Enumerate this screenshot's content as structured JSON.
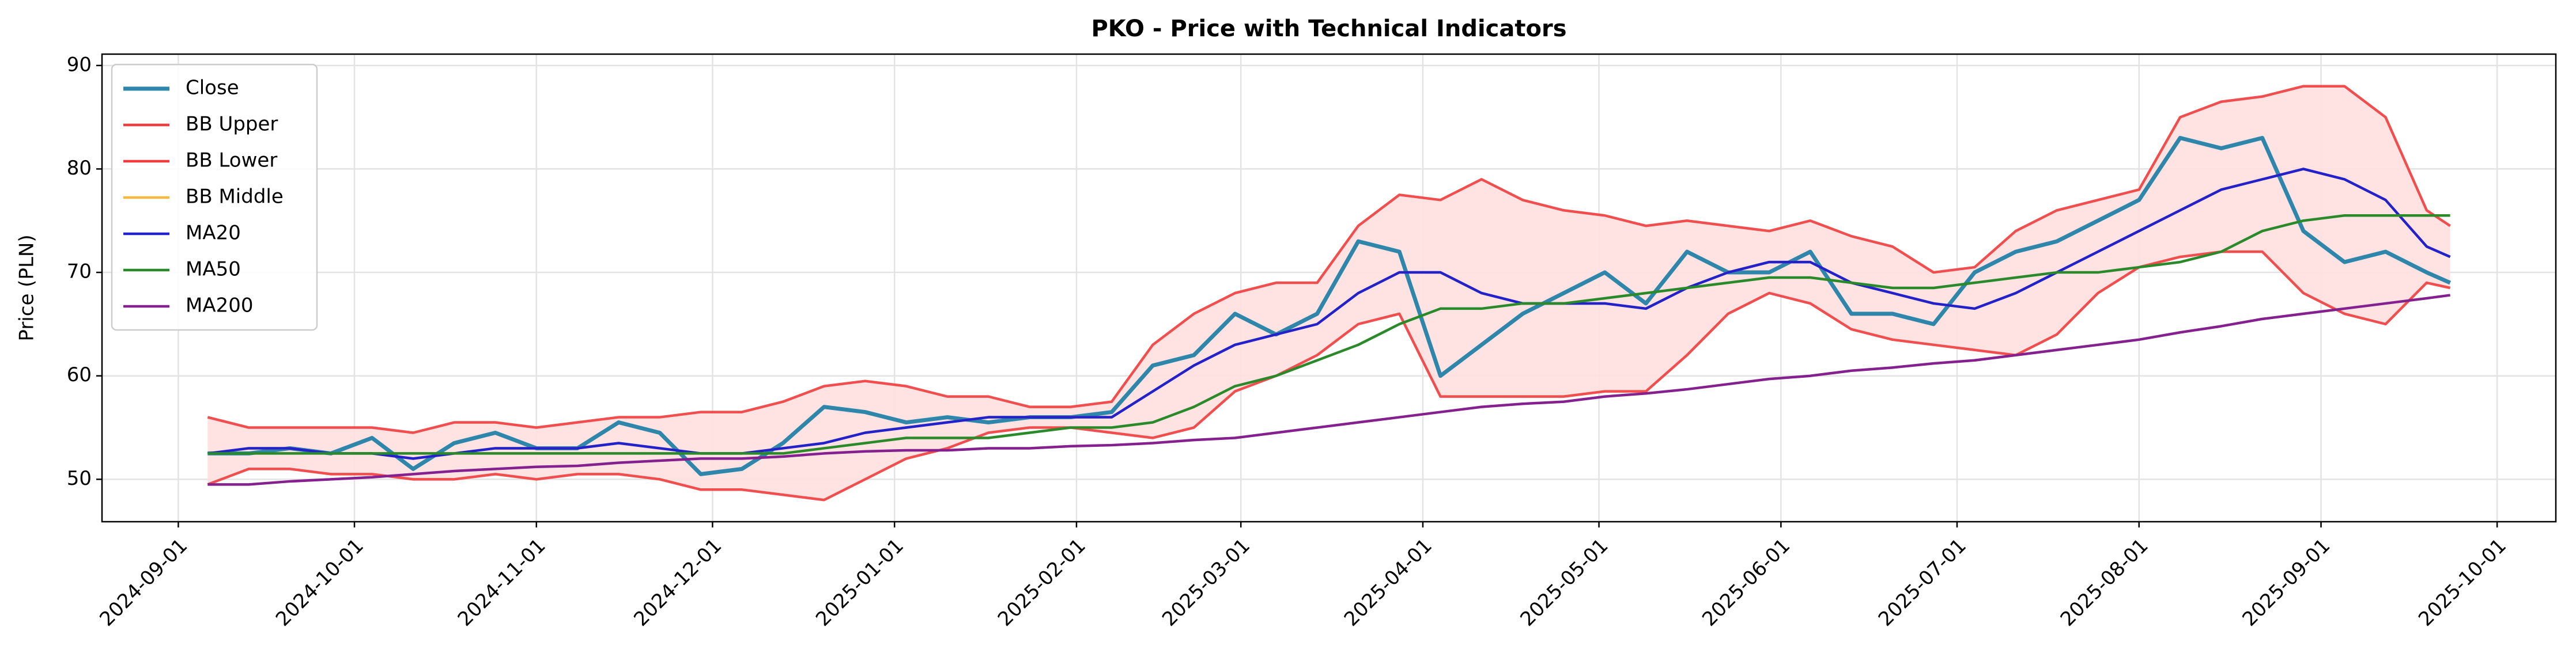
{
  "chart_data": {
    "type": "line",
    "title": "PKO - Price with Technical Indicators",
    "ylabel": "Price (PLN)",
    "x": [
      "2024-09-06",
      "2024-09-13",
      "2024-09-20",
      "2024-09-27",
      "2024-10-04",
      "2024-10-11",
      "2024-10-18",
      "2024-10-25",
      "2024-11-01",
      "2024-11-08",
      "2024-11-15",
      "2024-11-22",
      "2024-11-29",
      "2024-12-06",
      "2024-12-13",
      "2024-12-20",
      "2024-12-27",
      "2025-01-03",
      "2025-01-10",
      "2025-01-17",
      "2025-01-24",
      "2025-01-31",
      "2025-02-07",
      "2025-02-14",
      "2025-02-21",
      "2025-02-28",
      "2025-03-07",
      "2025-03-14",
      "2025-03-21",
      "2025-03-28",
      "2025-04-04",
      "2025-04-11",
      "2025-04-18",
      "2025-04-25",
      "2025-05-02",
      "2025-05-09",
      "2025-05-16",
      "2025-05-23",
      "2025-05-30",
      "2025-06-06",
      "2025-06-13",
      "2025-06-20",
      "2025-06-27",
      "2025-07-04",
      "2025-07-11",
      "2025-07-18",
      "2025-07-25",
      "2025-08-01",
      "2025-08-08",
      "2025-08-15",
      "2025-08-22",
      "2025-08-29",
      "2025-09-05",
      "2025-09-12",
      "2025-09-19",
      "2025-09-23"
    ],
    "series": [
      {
        "name": "Close",
        "color": "#2e86ab",
        "values": [
          52.5,
          52.5,
          53,
          52.5,
          54,
          51,
          53.5,
          54.5,
          53,
          53,
          55.5,
          54.5,
          50.5,
          51,
          53.5,
          57,
          56.5,
          55.5,
          56,
          55.5,
          56,
          56,
          56.5,
          61,
          62,
          66,
          64,
          66,
          73,
          72,
          60,
          63,
          66,
          68,
          70,
          67,
          72,
          70,
          70,
          72,
          66,
          66,
          65,
          70,
          72,
          73,
          75,
          77,
          83,
          82,
          83,
          74,
          71,
          72,
          70,
          69
        ]
      },
      {
        "name": "BB Upper",
        "color": "#f03c3c",
        "values": [
          56,
          55,
          55,
          55,
          55,
          54.5,
          55.5,
          55.5,
          55,
          55.5,
          56,
          56,
          56.5,
          56.5,
          57.5,
          59,
          59.5,
          59,
          58,
          58,
          57,
          57,
          57.5,
          63,
          66,
          68,
          69,
          69,
          74.5,
          77.5,
          77,
          79,
          77,
          76,
          75.5,
          74.5,
          75,
          74.5,
          74,
          75,
          73.5,
          72.5,
          70,
          70.5,
          74,
          76,
          77,
          78,
          85,
          86.5,
          87,
          88,
          88,
          85,
          76,
          74.5
        ]
      },
      {
        "name": "BB Lower",
        "color": "#f03c3c",
        "values": [
          49.5,
          51,
          51,
          50.5,
          50.5,
          50,
          50,
          50.5,
          50,
          50.5,
          50.5,
          50,
          49,
          49,
          48.5,
          48,
          50,
          52,
          53,
          54.5,
          55,
          55,
          54.5,
          54,
          55,
          58.5,
          60,
          62,
          65,
          66,
          58,
          58,
          58,
          58,
          58.5,
          58.5,
          62,
          66,
          68,
          67,
          64.5,
          63.5,
          63,
          62.5,
          62,
          64,
          68,
          70.5,
          71.5,
          72,
          72,
          68,
          66,
          65,
          69,
          68.5
        ]
      },
      {
        "name": "BB Middle",
        "color": "#f5b942",
        "values": [
          52.5,
          53,
          53,
          52.5,
          52.5,
          52,
          52.5,
          53,
          53,
          53,
          53.5,
          53,
          52.5,
          52.5,
          53,
          53.5,
          54.5,
          55,
          55.5,
          56,
          56,
          56,
          56,
          58.5,
          61,
          63,
          64,
          65,
          68,
          70,
          70,
          68,
          67,
          67,
          67,
          66.5,
          68.5,
          70,
          71,
          71,
          69,
          68,
          67,
          66.5,
          68,
          70,
          72,
          74,
          76,
          78,
          79,
          80,
          79,
          77,
          72.5,
          71.5
        ]
      },
      {
        "name": "MA20",
        "color": "#2222cc",
        "values": [
          52.5,
          53,
          53,
          52.5,
          52.5,
          52,
          52.5,
          53,
          53,
          53,
          53.5,
          53,
          52.5,
          52.5,
          53,
          53.5,
          54.5,
          55,
          55.5,
          56,
          56,
          56,
          56,
          58.5,
          61,
          63,
          64,
          65,
          68,
          70,
          70,
          68,
          67,
          67,
          67,
          66.5,
          68.5,
          70,
          71,
          71,
          69,
          68,
          67,
          66.5,
          68,
          70,
          72,
          74,
          76,
          78,
          79,
          80,
          79,
          77,
          72.5,
          71.5
        ]
      },
      {
        "name": "MA50",
        "color": "#2a8a2a",
        "values": [
          52.5,
          52.5,
          52.5,
          52.5,
          52.5,
          52.5,
          52.5,
          52.5,
          52.5,
          52.5,
          52.5,
          52.5,
          52.5,
          52.5,
          52.5,
          53,
          53.5,
          54,
          54,
          54,
          54.5,
          55,
          55,
          55.5,
          57,
          59,
          60,
          61.5,
          63,
          65,
          66.5,
          66.5,
          67,
          67,
          67.5,
          68,
          68.5,
          69,
          69.5,
          69.5,
          69,
          68.5,
          68.5,
          69,
          69.5,
          70,
          70,
          70.5,
          71,
          72,
          74,
          75,
          75.5,
          75.5,
          75.5,
          75.5
        ]
      },
      {
        "name": "MA200",
        "color": "#85208f",
        "values": [
          49.5,
          49.5,
          49.8,
          50,
          50.2,
          50.5,
          50.8,
          51,
          51.2,
          51.3,
          51.6,
          51.8,
          52,
          52,
          52.2,
          52.5,
          52.7,
          52.8,
          52.8,
          53,
          53,
          53.2,
          53.3,
          53.5,
          53.8,
          54,
          54.5,
          55,
          55.5,
          56,
          56.5,
          57,
          57.3,
          57.5,
          58,
          58.3,
          58.7,
          59.2,
          59.7,
          60,
          60.5,
          60.8,
          61.2,
          61.5,
          62,
          62.5,
          63,
          63.5,
          64.2,
          64.8,
          65.5,
          66,
          66.5,
          67,
          67.5,
          67.8
        ]
      }
    ],
    "band_fill": "#ffe0e0",
    "xlim": [
      "2024-08-19",
      "2025-10-11"
    ],
    "xticks": [
      "2024-09-01",
      "2024-10-01",
      "2024-11-01",
      "2024-12-01",
      "2025-01-01",
      "2025-02-01",
      "2025-03-01",
      "2025-04-01",
      "2025-05-01",
      "2025-06-01",
      "2025-07-01",
      "2025-08-01",
      "2025-09-01",
      "2025-10-01"
    ],
    "ylim": [
      45.9,
      91.1
    ],
    "yticks": [
      50,
      60,
      70,
      80,
      90
    ],
    "grid": true,
    "legend_loc": "upper left"
  }
}
